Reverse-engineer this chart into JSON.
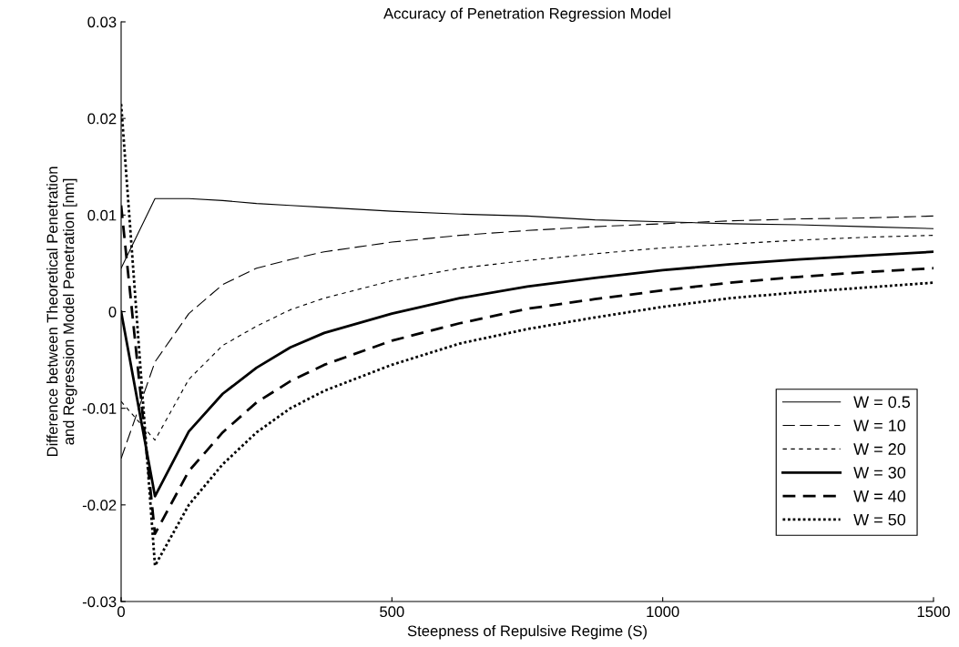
{
  "chart_data": {
    "type": "line",
    "title": "Accuracy of Penetration Regression Model",
    "xlabel": "Steepness of Repulsive Regime (S)",
    "ylabel": "Difference between Theoretical Penetration\nand Regression Model Penetration [nm]",
    "x": [
      0,
      62.5,
      125,
      187.5,
      250,
      312.5,
      375,
      500,
      625,
      750,
      875,
      1000,
      1125,
      1250,
      1375,
      1500
    ],
    "series": [
      {
        "name": "W = 0.5",
        "color": "#000000",
        "line_style": "solid",
        "values": [
          0.0045,
          0.0117,
          0.0117,
          0.0115,
          0.0112,
          0.011,
          0.0108,
          0.0104,
          0.0101,
          0.0099,
          0.0095,
          0.0093,
          0.0091,
          0.009,
          0.0088,
          0.0086
        ]
      },
      {
        "name": "W = 10",
        "color": "#000000",
        "line_style": "dashed",
        "values": [
          -0.0152,
          -0.0052,
          -0.0002,
          0.0028,
          0.0045,
          0.0054,
          0.0062,
          0.0072,
          0.0079,
          0.0084,
          0.0088,
          0.0091,
          0.0094,
          0.0096,
          0.0097,
          0.0099
        ]
      },
      {
        "name": "W = 20",
        "color": "#000000",
        "line_style": "dashed",
        "values": [
          -0.0093,
          -0.0133,
          -0.007,
          -0.0035,
          -0.0015,
          0.0002,
          0.0014,
          0.0032,
          0.0045,
          0.0053,
          0.006,
          0.0066,
          0.007,
          0.0074,
          0.0077,
          0.0079
        ]
      },
      {
        "name": "W = 30",
        "color": "#000000",
        "line_style": "solid",
        "values": [
          0,
          -0.0191,
          -0.0124,
          -0.0085,
          -0.0058,
          -0.0037,
          -0.0022,
          -0.0002,
          0.0014,
          0.0026,
          0.0035,
          0.0043,
          0.0049,
          0.0054,
          0.0058,
          0.0062
        ]
      },
      {
        "name": "W = 40",
        "color": "#000000",
        "line_style": "dashed",
        "values": [
          0.011,
          -0.023,
          -0.0165,
          -0.0125,
          -0.0094,
          -0.0072,
          -0.0055,
          -0.003,
          -0.0012,
          0.0003,
          0.0013,
          0.0022,
          0.003,
          0.0036,
          0.0041,
          0.0045
        ]
      },
      {
        "name": "W = 50",
        "color": "#000000",
        "line_style": "dotted",
        "values": [
          0.0215,
          -0.0263,
          -0.02,
          -0.0158,
          -0.0125,
          -0.01,
          -0.0082,
          -0.0055,
          -0.0033,
          -0.0018,
          -0.0006,
          0.0005,
          0.0014,
          0.002,
          0.0025,
          0.003
        ]
      }
    ],
    "xlim": [
      0,
      1500
    ],
    "xticks": [
      0,
      500,
      1000,
      1500
    ],
    "ylim": [
      -0.03,
      0.03
    ],
    "yticks": [
      {
        "value": -0.03,
        "label": "-0.03"
      },
      {
        "value": -0.02,
        "label": "-0.02"
      },
      {
        "value": -0.01,
        "label": "-0.01"
      },
      0,
      0.01,
      0.02,
      0.03
    ],
    "legend": "bottom right",
    "grid": false,
    "marker": "none"
  }
}
